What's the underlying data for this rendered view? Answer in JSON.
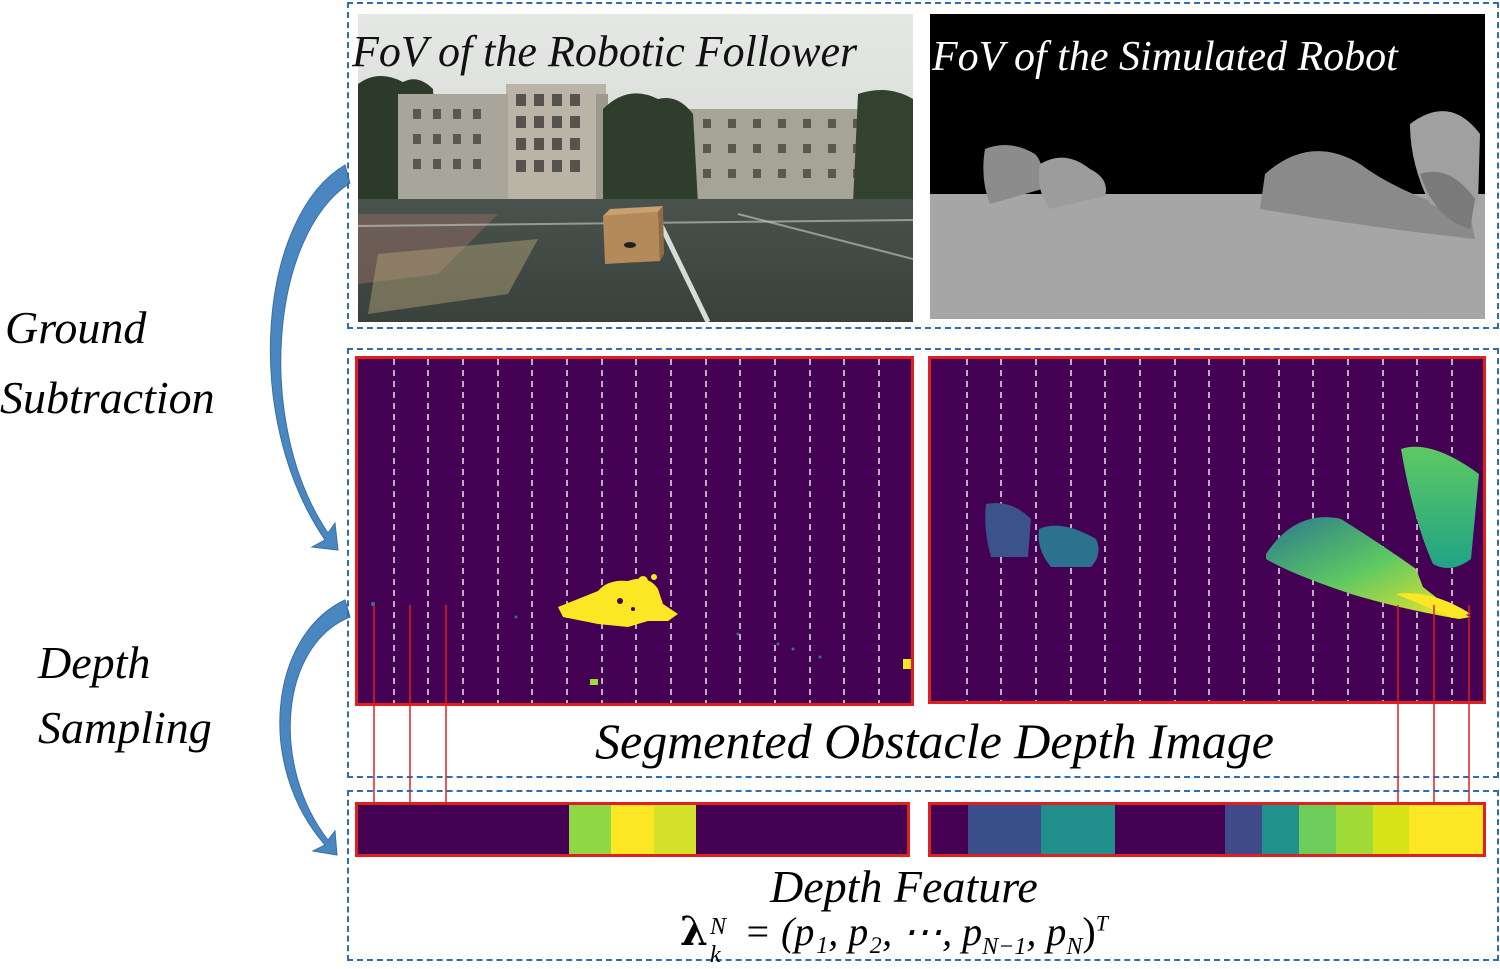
{
  "side_labels": {
    "ground_line1": "Ground",
    "ground_line2": "Subtraction",
    "depth_line1": "Depth",
    "depth_line2": "Sampling"
  },
  "photos": {
    "left_title": "FoV of the Robotic Follower",
    "right_title": "FoV of the Simulated Robot"
  },
  "segmented_caption": "Segmented Obstacle Depth Image",
  "feature_caption": "Depth Feature",
  "formula": {
    "lhs": "λ",
    "sup": "N",
    "sub": "k",
    "rhs": " = (p₁, p₂, ⋯, p",
    "n_minus_1": "N−1",
    "after": ", p",
    "n": "N",
    "close": ")",
    "transpose": "T"
  },
  "colors": {
    "panel_border": "#2f6cb0",
    "red_border": "#e01f1f",
    "viridis_dark": "#440154",
    "viridis_yellow": "#fde725",
    "arrow_blue": "#4a86c0"
  },
  "left_feature_colors": [
    "#440154",
    "#440154",
    "#440154",
    "#440154",
    "#440154",
    "#8fd744",
    "#fde725",
    "#d4e12a",
    "#440154",
    "#440154",
    "#440154",
    "#440154",
    "#440154"
  ],
  "right_feature_colors": [
    "#440154",
    "#3b4f8c",
    "#3b4f8c",
    "#21908d",
    "#21908d",
    "#440154",
    "#440154",
    "#440154",
    "#3e4a89",
    "#21918c",
    "#6ccd5a",
    "#a0da39",
    "#d8e219",
    "#fde725",
    "#fde725"
  ]
}
